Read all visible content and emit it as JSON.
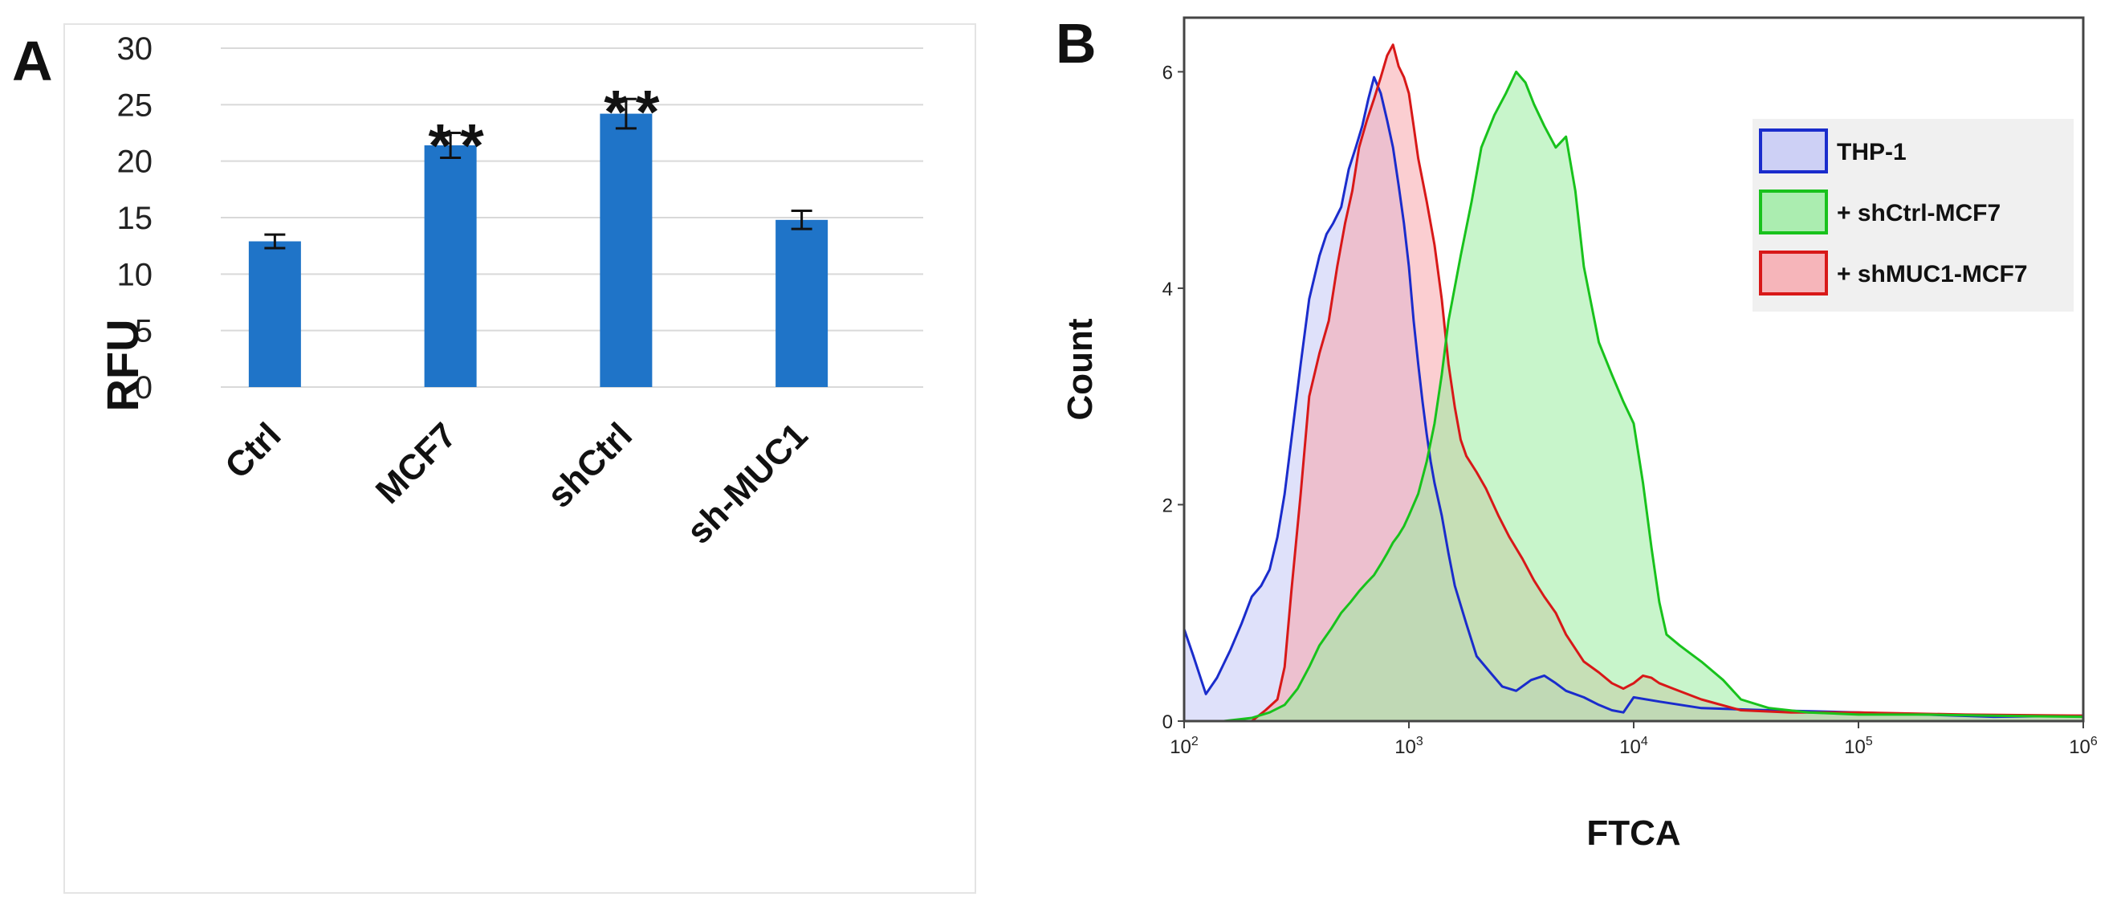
{
  "chart_data": [
    {
      "panel": "A",
      "type": "bar",
      "title": "",
      "xlabel": "",
      "ylabel": "RFU",
      "ylim": [
        0,
        30
      ],
      "yticks": [
        "0",
        "5",
        "10",
        "15",
        "20",
        "25",
        "30"
      ],
      "grid": true,
      "categories": [
        "Ctrl",
        "MCF7",
        "shCtrl",
        "sh-MUC1"
      ],
      "values": [
        12.9,
        21.4,
        24.2,
        14.8
      ],
      "errors": [
        0.6,
        1.1,
        1.3,
        0.8
      ],
      "significance": [
        "",
        "**",
        "**",
        ""
      ],
      "color": "#1f74c8"
    },
    {
      "panel": "B",
      "type": "area",
      "title": "",
      "xlabel": "FTCA",
      "ylabel": "Count",
      "xscale": "log",
      "xlim": [
        100,
        1000000
      ],
      "ylim": [
        0,
        6.5
      ],
      "ytick_values": [
        0,
        2,
        4,
        6
      ],
      "yticks": [
        "0",
        "2",
        "4",
        "6"
      ],
      "xtick_values": [
        100,
        1000,
        10000,
        100000,
        1000000
      ],
      "xtick_base": "10",
      "xtick_exponents": [
        "2",
        "3",
        "4",
        "5",
        "6"
      ],
      "legend_position": "top-right",
      "series": [
        {
          "name": "THP-1",
          "stroke": "#1a2ccc",
          "fill": "#c4c8f6",
          "x": [
            100,
            110,
            125,
            140,
            160,
            180,
            200,
            220,
            240,
            260,
            280,
            300,
            330,
            360,
            400,
            430,
            460,
            500,
            540,
            580,
            620,
            660,
            700,
            750,
            800,
            850,
            900,
            950,
            1000,
            1050,
            1100,
            1150,
            1200,
            1250,
            1300,
            1400,
            1500,
            1600,
            1800,
            2000,
            2300,
            2600,
            3000,
            3500,
            4000,
            4500,
            5000,
            6000,
            7000,
            8000,
            9000,
            10000,
            13000,
            20000,
            40000,
            100000,
            200000,
            400000,
            1000000
          ],
          "y": [
            0.85,
            0.6,
            0.25,
            0.4,
            0.65,
            0.9,
            1.15,
            1.25,
            1.4,
            1.7,
            2.1,
            2.6,
            3.3,
            3.9,
            4.3,
            4.5,
            4.6,
            4.75,
            5.1,
            5.3,
            5.5,
            5.75,
            5.95,
            5.8,
            5.55,
            5.3,
            4.95,
            4.6,
            4.2,
            3.7,
            3.3,
            2.95,
            2.65,
            2.4,
            2.2,
            1.9,
            1.55,
            1.25,
            0.9,
            0.6,
            0.45,
            0.32,
            0.28,
            0.38,
            0.42,
            0.35,
            0.28,
            0.22,
            0.15,
            0.1,
            0.08,
            0.22,
            0.18,
            0.12,
            0.1,
            0.08,
            0.06,
            0.04,
            0.05
          ]
        },
        {
          "name": "+ shCtrl-MCF7",
          "stroke": "#18c21c",
          "fill": "#9aeca0",
          "x": [
            100,
            150,
            200,
            240,
            280,
            320,
            360,
            400,
            450,
            500,
            550,
            600,
            650,
            700,
            750,
            800,
            850,
            900,
            950,
            1000,
            1100,
            1200,
            1300,
            1400,
            1500,
            1700,
            1900,
            2100,
            2400,
            2700,
            3000,
            3300,
            3600,
            4000,
            4500,
            5000,
            5500,
            6000,
            7000,
            8000,
            9000,
            10000,
            11000,
            12000,
            13000,
            14000,
            16000,
            18000,
            20000,
            25000,
            30000,
            40000,
            60000,
            100000,
            200000,
            400000,
            1000000
          ],
          "y": [
            0,
            0,
            0.03,
            0.08,
            0.15,
            0.3,
            0.5,
            0.7,
            0.85,
            1.0,
            1.1,
            1.2,
            1.28,
            1.35,
            1.45,
            1.55,
            1.65,
            1.72,
            1.8,
            1.9,
            2.1,
            2.4,
            2.75,
            3.2,
            3.7,
            4.3,
            4.8,
            5.3,
            5.6,
            5.8,
            6.0,
            5.9,
            5.7,
            5.5,
            5.3,
            5.4,
            4.9,
            4.2,
            3.5,
            3.2,
            2.95,
            2.75,
            2.2,
            1.6,
            1.1,
            0.8,
            0.7,
            0.62,
            0.55,
            0.38,
            0.2,
            0.12,
            0.08,
            0.06,
            0.06,
            0.05,
            0.04
          ]
        },
        {
          "name": "+ shMUC1-MCF7",
          "stroke": "#d81818",
          "fill": "#f7a6ac",
          "x": [
            100,
            150,
            200,
            230,
            260,
            280,
            300,
            330,
            360,
            400,
            440,
            480,
            520,
            560,
            600,
            650,
            700,
            750,
            800,
            850,
            900,
            950,
            1000,
            1050,
            1100,
            1200,
            1300,
            1400,
            1500,
            1600,
            1700,
            1800,
            2000,
            2200,
            2500,
            2800,
            3200,
            3600,
            4000,
            4500,
            5000,
            6000,
            7000,
            8000,
            9000,
            10000,
            11000,
            12000,
            13000,
            15000,
            20000,
            30000,
            50000,
            100000,
            300000,
            1000000
          ],
          "y": [
            0,
            0,
            0,
            0.1,
            0.2,
            0.5,
            1.2,
            2.1,
            3.0,
            3.4,
            3.7,
            4.2,
            4.6,
            4.9,
            5.3,
            5.55,
            5.75,
            5.95,
            6.15,
            6.25,
            6.05,
            5.95,
            5.8,
            5.5,
            5.2,
            4.8,
            4.4,
            3.9,
            3.3,
            2.9,
            2.6,
            2.45,
            2.3,
            2.15,
            1.9,
            1.7,
            1.5,
            1.3,
            1.15,
            1.0,
            0.8,
            0.55,
            0.45,
            0.35,
            0.3,
            0.35,
            0.42,
            0.4,
            0.35,
            0.3,
            0.2,
            0.1,
            0.08,
            0.08,
            0.06,
            0.05
          ]
        }
      ]
    }
  ]
}
